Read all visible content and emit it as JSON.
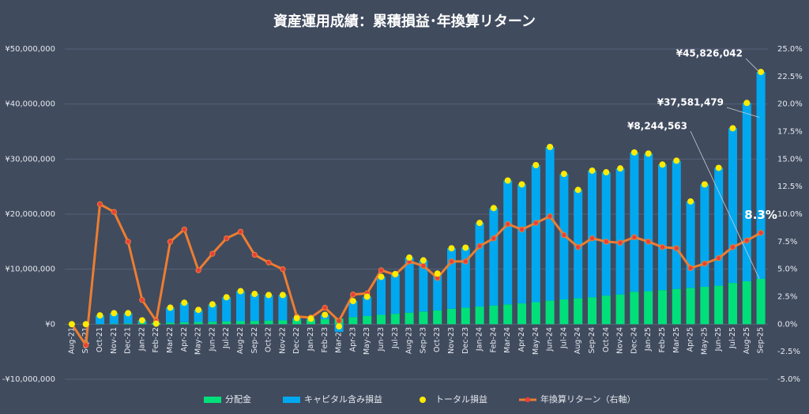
{
  "chart_data": {
    "type": "bar",
    "title": "資産運用成績：累積損益･年換算リターン",
    "categories": [
      "Aug-21",
      "Sep-21",
      "Oct-21",
      "Nov-21",
      "Dec-21",
      "Jan-22",
      "Feb-22",
      "Mar-22",
      "Apr-22",
      "May-22",
      "Jun-22",
      "Jul-22",
      "Aug-22",
      "Sep-22",
      "Oct-22",
      "Nov-22",
      "Dec-22",
      "Jan-23",
      "Feb-23",
      "Mar-23",
      "Apr-23",
      "May-23",
      "Jun-23",
      "Jul-23",
      "Aug-23",
      "Sep-23",
      "Oct-23",
      "Nov-23",
      "Dec-23",
      "Jan-24",
      "Feb-24",
      "Mar-24",
      "Apr-24",
      "May-24",
      "Jun-24",
      "Jul-24",
      "Aug-24",
      "Sep-24",
      "Oct-24",
      "Nov-24",
      "Dec-24",
      "Jan-25",
      "Feb-25",
      "Mar-25",
      "Apr-25",
      "May-25",
      "Jun-25",
      "Jul-25",
      "Aug-25",
      "Sep-25"
    ],
    "series": [
      {
        "name": "分配金",
        "type": "bar",
        "color": "#00e07a",
        "values": [
          0,
          0,
          50000,
          100000,
          150000,
          200000,
          250000,
          300000,
          350000,
          400000,
          450000,
          500000,
          550000,
          600000,
          650000,
          700000,
          750000,
          800000,
          900000,
          1000000,
          1300000,
          1500000,
          1700000,
          1900000,
          2100000,
          2300000,
          2500000,
          2800000,
          3000000,
          3200000,
          3400000,
          3600000,
          3800000,
          4000000,
          4300000,
          4500000,
          4700000,
          4900000,
          5200000,
          5400000,
          5900000,
          6000000,
          6200000,
          6400000,
          6600000,
          6800000,
          7000000,
          7500000,
          7800000,
          8244563
        ]
      },
      {
        "name": "キャピタル含み損益",
        "type": "bar",
        "color": "#00a8f0",
        "values": [
          0,
          0,
          1550000,
          1900000,
          1850000,
          500000,
          -150000,
          2700000,
          3550000,
          2200000,
          3150000,
          4400000,
          5450000,
          4900000,
          4650000,
          4600000,
          350000,
          200000,
          800000,
          -1400000,
          2900000,
          3500000,
          6900000,
          7200000,
          10000000,
          9300000,
          6700000,
          11000000,
          10900000,
          15200000,
          17700000,
          22500000,
          21600000,
          24900000,
          27900000,
          22800000,
          19700000,
          23000000,
          22400000,
          22900000,
          25300000,
          25000000,
          22800000,
          23300000,
          15700000,
          18600000,
          21400000,
          28100000,
          32400000,
          37581479
        ]
      },
      {
        "name": "トータル損益",
        "type": "dot",
        "color": "#ffeb00",
        "values": [
          0,
          0,
          1600000,
          2000000,
          2000000,
          700000,
          100000,
          3000000,
          3900000,
          2600000,
          3600000,
          4900000,
          6000000,
          5500000,
          5300000,
          5300000,
          1100000,
          1000000,
          1700000,
          -400000,
          4200000,
          5000000,
          8600000,
          9100000,
          12100000,
          11600000,
          9200000,
          13800000,
          13900000,
          18400000,
          21100000,
          26100000,
          25400000,
          28900000,
          32200000,
          27300000,
          24400000,
          27900000,
          27600000,
          28300000,
          31200000,
          31000000,
          29000000,
          29700000,
          22300000,
          25400000,
          28400000,
          35600000,
          40200000,
          45826042
        ]
      },
      {
        "name": "年換算リターン（右軸）",
        "type": "line",
        "axis": "y2",
        "color": "#ed7d31",
        "marker_color": "#e8403a",
        "values": [
          0,
          -1.9,
          10.9,
          10.2,
          7.5,
          2.2,
          0.3,
          7.5,
          8.6,
          4.9,
          6.4,
          7.8,
          8.4,
          6.3,
          5.6,
          5.0,
          0.7,
          0.6,
          1.5,
          0.3,
          2.7,
          2.8,
          4.9,
          4.5,
          5.7,
          5.3,
          4.2,
          5.7,
          5.7,
          7.1,
          7.8,
          9.1,
          8.6,
          9.2,
          9.8,
          8.1,
          7.0,
          7.8,
          7.5,
          7.4,
          7.9,
          7.5,
          7.0,
          6.9,
          5.1,
          5.5,
          6.0,
          7.0,
          7.6,
          8.3
        ]
      }
    ],
    "annotations": [
      {
        "label": "¥45,826,042",
        "value": 45826042,
        "axis": "y"
      },
      {
        "label": "¥37,581,479",
        "value": 37581479,
        "axis": "y"
      },
      {
        "label": "¥8,244,563",
        "value": 8244563,
        "axis": "y"
      },
      {
        "label": "8.3%",
        "value": 8.3,
        "axis": "y2"
      }
    ],
    "ylim": [
      -10000000,
      50000000
    ],
    "yticks": [
      {
        "value": -10000000,
        "label": "-¥10,000,000"
      },
      {
        "value": 0,
        "label": "¥0"
      },
      {
        "value": 10000000,
        "label": "¥10,000,000"
      },
      {
        "value": 20000000,
        "label": "¥20,000,000"
      },
      {
        "value": 30000000,
        "label": "¥30,000,000"
      },
      {
        "value": 40000000,
        "label": "¥40,000,000"
      },
      {
        "value": 50000000,
        "label": "¥50,000,000"
      }
    ],
    "y2lim": [
      -5,
      25
    ],
    "y2ticks": [
      {
        "value": -5,
        "label": "-5.0%"
      },
      {
        "value": -2.5,
        "label": "-2.5%"
      },
      {
        "value": 0,
        "label": "0.0%"
      },
      {
        "value": 2.5,
        "label": "2.5%"
      },
      {
        "value": 5,
        "label": "5.0%"
      },
      {
        "value": 7.5,
        "label": "7.5%"
      },
      {
        "value": 10,
        "label": "10.0%"
      },
      {
        "value": 12.5,
        "label": "12.5%"
      },
      {
        "value": 15,
        "label": "15.0%"
      },
      {
        "value": 17.5,
        "label": "17.5%"
      },
      {
        "value": 20,
        "label": "20.0%"
      },
      {
        "value": 22.5,
        "label": "22.5%"
      },
      {
        "value": 25,
        "label": "25.0%"
      }
    ],
    "grid": true
  }
}
